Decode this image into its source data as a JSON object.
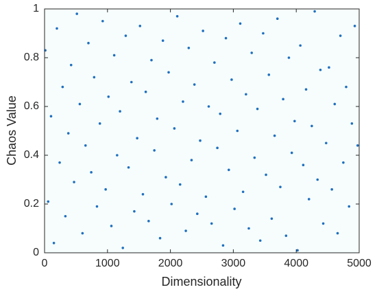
{
  "chart_data": {
    "type": "scatter",
    "x_label": "Dimensionality",
    "y_label": "Chaos Value",
    "xlim": [
      0,
      5000
    ],
    "ylim": [
      0,
      1
    ],
    "xticks": [
      0,
      1000,
      2000,
      3000,
      4000,
      5000
    ],
    "yticks": [
      0,
      0.2,
      0.4,
      0.6,
      0.8,
      1
    ],
    "grid": false,
    "series": [
      {
        "color": "#1f6fbf",
        "x": [
          12,
          57,
          103,
          148,
          196,
          240,
          287,
          331,
          378,
          422,
          469,
          514,
          560,
          603,
          651,
          697,
          742,
          788,
          833,
          879,
          924,
          971,
          1016,
          1062,
          1107,
          1153,
          1199,
          1244,
          1290,
          1335,
          1381,
          1426,
          1472,
          1517,
          1563,
          1608,
          1654,
          1699,
          1745,
          1790,
          1836,
          1881,
          1927,
          1972,
          2018,
          2063,
          2109,
          2154,
          2200,
          2245,
          2291,
          2336,
          2382,
          2427,
          2473,
          2518,
          2564,
          2609,
          2655,
          2700,
          2746,
          2791,
          2837,
          2882,
          2928,
          2973,
          3019,
          3064,
          3110,
          3155,
          3201,
          3246,
          3292,
          3337,
          3383,
          3428,
          3474,
          3519,
          3565,
          3610,
          3656,
          3701,
          3747,
          3792,
          3838,
          3883,
          3929,
          3974,
          4020,
          4065,
          4111,
          4156,
          4202,
          4247,
          4293,
          4338,
          4384,
          4429,
          4475,
          4520,
          4566,
          4611,
          4657,
          4702,
          4748,
          4793,
          4839,
          4884,
          4930,
          4975
        ],
        "values": [
          0.83,
          0.21,
          0.56,
          0.04,
          0.92,
          0.37,
          0.68,
          0.15,
          0.49,
          0.77,
          0.29,
          0.98,
          0.61,
          0.08,
          0.44,
          0.86,
          0.33,
          0.72,
          0.19,
          0.53,
          0.95,
          0.26,
          0.64,
          0.11,
          0.81,
          0.4,
          0.58,
          0.02,
          0.89,
          0.35,
          0.7,
          0.17,
          0.47,
          0.93,
          0.24,
          0.66,
          0.13,
          0.79,
          0.42,
          0.55,
          0.06,
          0.87,
          0.31,
          0.74,
          0.2,
          0.51,
          0.97,
          0.28,
          0.62,
          0.09,
          0.84,
          0.38,
          0.69,
          0.16,
          0.46,
          0.91,
          0.23,
          0.6,
          0.12,
          0.78,
          0.43,
          0.57,
          0.03,
          0.88,
          0.34,
          0.71,
          0.18,
          0.5,
          0.94,
          0.25,
          0.65,
          0.1,
          0.82,
          0.39,
          0.59,
          0.05,
          0.9,
          0.32,
          0.73,
          0.14,
          0.48,
          0.96,
          0.27,
          0.63,
          0.07,
          0.8,
          0.41,
          0.54,
          0.01,
          0.85,
          0.36,
          0.67,
          0.22,
          0.52,
          0.99,
          0.3,
          0.75,
          0.12,
          0.45,
          0.76,
          0.26,
          0.61,
          0.08,
          0.89,
          0.37,
          0.68,
          0.19,
          0.53,
          0.93,
          0.44
        ]
      }
    ]
  }
}
